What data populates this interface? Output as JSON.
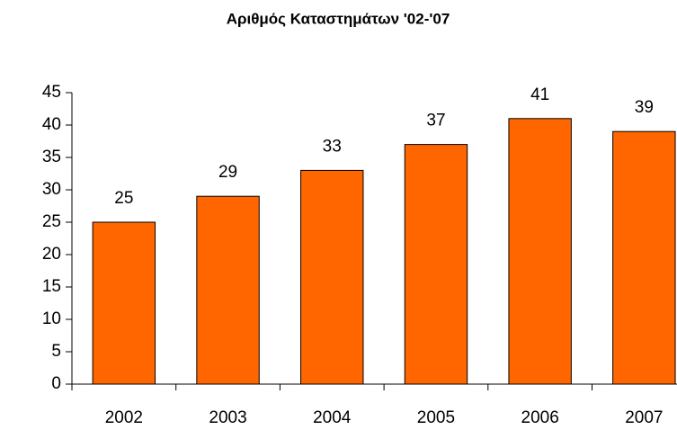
{
  "chart_data": {
    "type": "bar",
    "title": "Αριθμός Καταστημάτων  '02-'07",
    "categories": [
      "2002",
      "2003",
      "2004",
      "2005",
      "2006",
      "2007"
    ],
    "values": [
      25,
      29,
      33,
      37,
      41,
      39
    ],
    "color": "#ff6600",
    "ylim": [
      0,
      45
    ],
    "yticks": [
      0,
      5,
      10,
      15,
      20,
      25,
      30,
      35,
      40,
      45
    ],
    "grid": false,
    "data_labels": true
  }
}
